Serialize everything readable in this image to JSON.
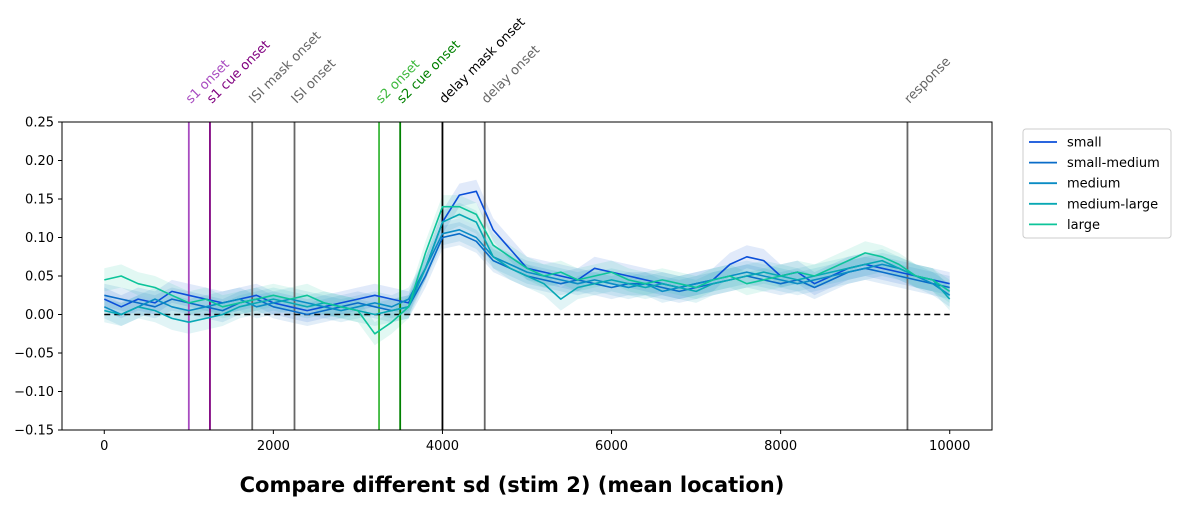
{
  "chart_data": {
    "type": "line",
    "title": "Compare different sd (stim 2) (mean location)",
    "xlabel": "",
    "ylabel": "",
    "xlim": [
      -500,
      10500
    ],
    "ylim": [
      -0.15,
      0.25
    ],
    "xticks": [
      0,
      2000,
      4000,
      6000,
      8000,
      10000
    ],
    "xtick_labels": [
      "0",
      "2000",
      "4000",
      "6000",
      "8000",
      "10000"
    ],
    "yticks": [
      -0.15,
      -0.1,
      -0.05,
      0.0,
      0.05,
      0.1,
      0.15,
      0.2,
      0.25
    ],
    "ytick_labels": [
      "−0.15",
      "−0.10",
      "−0.05",
      "0.00",
      "0.05",
      "0.10",
      "0.15",
      "0.20",
      "0.25"
    ],
    "grid": false,
    "legend_position": "outside right, top",
    "baseline": {
      "y": 0,
      "x_range": [
        0,
        10000
      ],
      "style": "dashed",
      "color": "#000000"
    },
    "events": [
      {
        "label": "s1 onset",
        "x": 1000,
        "color": "#a84bc0"
      },
      {
        "label": "s1 cue onset",
        "x": 1250,
        "color": "#800080"
      },
      {
        "label": "ISI mask onset",
        "x": 1750,
        "color": "#666666"
      },
      {
        "label": "ISI onset",
        "x": 2250,
        "color": "#666666"
      },
      {
        "label": "s2 onset",
        "x": 3250,
        "color": "#3cb83c"
      },
      {
        "label": "s2 cue onset",
        "x": 3500,
        "color": "#008000"
      },
      {
        "label": "delay mask onset",
        "x": 4000,
        "color": "#000000"
      },
      {
        "label": "delay onset",
        "x": 4500,
        "color": "#666666"
      },
      {
        "label": "response",
        "x": 9500,
        "color": "#666666"
      }
    ],
    "x": [
      0,
      200,
      400,
      600,
      800,
      1000,
      1200,
      1400,
      1600,
      1800,
      2000,
      2200,
      2400,
      2600,
      2800,
      3000,
      3200,
      3400,
      3600,
      3800,
      4000,
      4200,
      4400,
      4600,
      4800,
      5000,
      5200,
      5400,
      5600,
      5800,
      6000,
      6200,
      6400,
      6600,
      6800,
      7000,
      7200,
      7400,
      7600,
      7800,
      8000,
      8200,
      8400,
      8600,
      8800,
      9000,
      9200,
      9400,
      9600,
      9800,
      10000
    ],
    "series": [
      {
        "name": "small",
        "color": "#0b4fd9",
        "band_halfwidth": 0.015,
        "values": [
          0.02,
          0.01,
          0.02,
          0.015,
          0.03,
          0.025,
          0.02,
          0.015,
          0.02,
          0.025,
          0.015,
          0.01,
          0.005,
          0.01,
          0.015,
          0.02,
          0.025,
          0.02,
          0.015,
          0.06,
          0.12,
          0.155,
          0.16,
          0.11,
          0.085,
          0.06,
          0.055,
          0.05,
          0.045,
          0.06,
          0.055,
          0.05,
          0.045,
          0.04,
          0.035,
          0.04,
          0.045,
          0.065,
          0.075,
          0.07,
          0.05,
          0.055,
          0.04,
          0.05,
          0.06,
          0.065,
          0.06,
          0.055,
          0.05,
          0.045,
          0.04
        ]
      },
      {
        "name": "small-medium",
        "color": "#0a6cc8",
        "band_halfwidth": 0.015,
        "values": [
          0.025,
          0.02,
          0.015,
          0.01,
          0.02,
          0.015,
          0.01,
          0.005,
          0.015,
          0.02,
          0.01,
          0.005,
          0.0,
          0.005,
          0.01,
          0.015,
          0.01,
          0.005,
          0.01,
          0.05,
          0.1,
          0.105,
          0.095,
          0.07,
          0.06,
          0.05,
          0.045,
          0.04,
          0.045,
          0.04,
          0.035,
          0.04,
          0.04,
          0.035,
          0.03,
          0.035,
          0.04,
          0.045,
          0.05,
          0.045,
          0.04,
          0.045,
          0.035,
          0.045,
          0.055,
          0.06,
          0.055,
          0.05,
          0.045,
          0.04,
          0.035
        ]
      },
      {
        "name": "medium",
        "color": "#0a8cc4",
        "band_halfwidth": 0.015,
        "values": [
          0.01,
          0.0,
          0.01,
          0.02,
          0.01,
          0.005,
          0.01,
          0.015,
          0.02,
          0.01,
          0.015,
          0.02,
          0.015,
          0.01,
          0.005,
          0.01,
          0.015,
          0.01,
          0.02,
          0.06,
          0.105,
          0.11,
          0.1,
          0.075,
          0.065,
          0.055,
          0.05,
          0.045,
          0.04,
          0.045,
          0.04,
          0.035,
          0.04,
          0.03,
          0.035,
          0.04,
          0.045,
          0.05,
          0.055,
          0.05,
          0.045,
          0.04,
          0.045,
          0.05,
          0.055,
          0.06,
          0.065,
          0.06,
          0.05,
          0.04,
          0.025
        ]
      },
      {
        "name": "medium-large",
        "color": "#08a8b4",
        "band_halfwidth": 0.015,
        "values": [
          0.005,
          0.0,
          0.01,
          0.005,
          -0.005,
          -0.01,
          -0.005,
          0.0,
          0.01,
          0.015,
          0.02,
          0.015,
          0.01,
          0.015,
          0.01,
          0.005,
          0.0,
          0.005,
          0.01,
          0.06,
          0.12,
          0.13,
          0.12,
          0.075,
          0.06,
          0.05,
          0.04,
          0.02,
          0.035,
          0.04,
          0.045,
          0.04,
          0.035,
          0.04,
          0.035,
          0.03,
          0.04,
          0.045,
          0.05,
          0.055,
          0.05,
          0.045,
          0.05,
          0.055,
          0.06,
          0.065,
          0.07,
          0.06,
          0.05,
          0.045,
          0.02
        ]
      },
      {
        "name": "large",
        "color": "#0dc49a",
        "band_halfwidth": 0.015,
        "values": [
          0.045,
          0.05,
          0.04,
          0.035,
          0.025,
          0.015,
          0.02,
          0.01,
          0.015,
          0.02,
          0.025,
          0.02,
          0.025,
          0.015,
          0.01,
          0.005,
          -0.025,
          -0.01,
          0.01,
          0.08,
          0.14,
          0.14,
          0.13,
          0.09,
          0.075,
          0.06,
          0.05,
          0.055,
          0.045,
          0.05,
          0.055,
          0.045,
          0.04,
          0.045,
          0.04,
          0.035,
          0.045,
          0.05,
          0.04,
          0.045,
          0.05,
          0.055,
          0.05,
          0.06,
          0.07,
          0.08,
          0.075,
          0.065,
          0.05,
          0.045,
          0.03
        ]
      }
    ]
  }
}
